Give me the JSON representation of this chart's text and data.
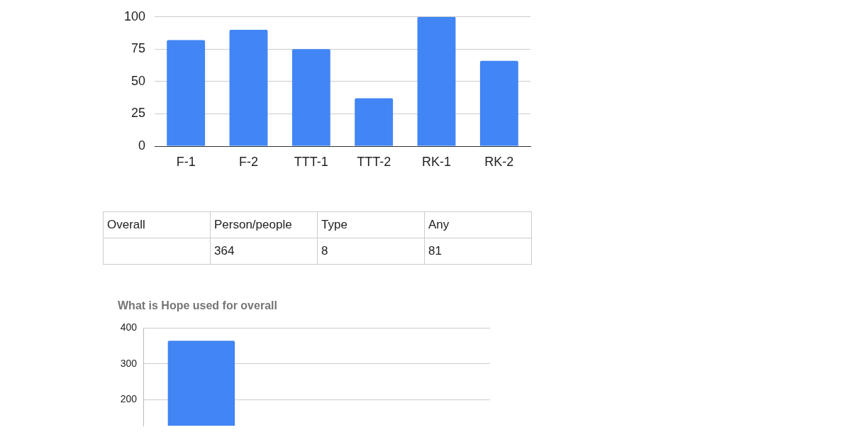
{
  "chart_data": [
    {
      "type": "bar",
      "categories": [
        "F-1",
        "F-2",
        "TTT-1",
        "TTT-2",
        "RK-1",
        "RK-2"
      ],
      "values": [
        82,
        90,
        75,
        37,
        100,
        66
      ],
      "color": "#4285f4",
      "ylim": [
        0,
        100
      ],
      "yticks": [
        0,
        25,
        50,
        75,
        100
      ],
      "grid": "y"
    },
    {
      "type": "other",
      "title": "Overall",
      "categories": [
        "Person/people",
        "Type",
        "Any"
      ],
      "values": [
        364,
        8,
        81
      ],
      "data_labels": true
    },
    {
      "type": "bar",
      "title": "What is Hope used for overall",
      "categories": [
        null,
        null,
        null
      ],
      "values": [
        364,
        null,
        null
      ],
      "color": "#4285f4",
      "ylim": [
        128,
        400
      ],
      "yticks": [
        200,
        300,
        400
      ],
      "grid": "y",
      "tick_labels": "y"
    }
  ]
}
